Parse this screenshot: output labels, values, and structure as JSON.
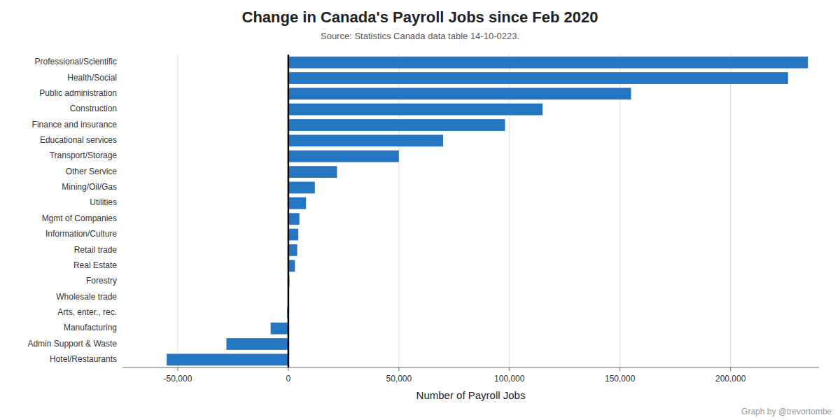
{
  "chart_data": {
    "type": "bar",
    "orientation": "horizontal",
    "title": "Change in Canada's Payroll Jobs since Feb 2020",
    "subtitle": "Source: Statistics Canada data table 14-10-0223.",
    "xlabel": "Number of Payroll Jobs",
    "annotations": [
      "Graph by @trevortombe"
    ],
    "categories": [
      "Professional/Scientific",
      "Health/Social",
      "Public administration",
      "Construction",
      "Finance and insurance",
      "Educational services",
      "Transport/Storage",
      "Other Service",
      "Mining/Oil/Gas",
      "Utilities",
      "Mgmt of Companies",
      "Information/Culture",
      "Retail trade",
      "Real Estate",
      "Forestry",
      "Wholesale trade",
      "Arts, enter., rec.",
      "Manufacturing",
      "Admin Support & Waste",
      "Hotel/Restaurants"
    ],
    "values": [
      235000,
      226000,
      155000,
      115000,
      98000,
      70000,
      50000,
      22000,
      12000,
      8000,
      5000,
      4500,
      4000,
      3000,
      500,
      100,
      -500,
      -8000,
      -28000,
      -55000
    ],
    "color": "#2476c3",
    "xlim": [
      -75000,
      240000
    ],
    "xticks": [
      {
        "value": -50000,
        "label": "-50,000"
      },
      0,
      {
        "value": 50000,
        "label": "50,000"
      },
      {
        "value": 100000,
        "label": "100,000"
      },
      {
        "value": 150000,
        "label": "150,000"
      },
      {
        "value": 200000,
        "label": "200,000"
      }
    ],
    "grid": true
  }
}
